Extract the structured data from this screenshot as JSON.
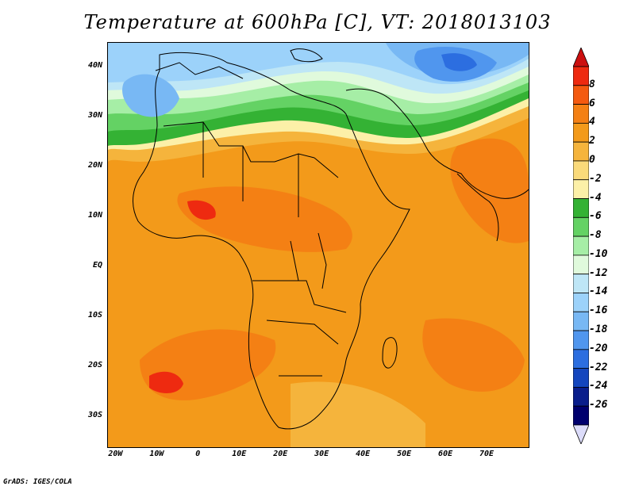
{
  "title": "Temperature at 600hPa [C], VT: 2018013103",
  "credit": "GrADS: IGES/COLA",
  "map": {
    "extent": {
      "lon": [
        -22,
        80
      ],
      "lat": [
        -36,
        45
      ]
    },
    "lat_ticks": [
      {
        "value": 40,
        "label": "40N"
      },
      {
        "value": 30,
        "label": "30N"
      },
      {
        "value": 20,
        "label": "20N"
      },
      {
        "value": 10,
        "label": "10N"
      },
      {
        "value": 0,
        "label": "EQ"
      },
      {
        "value": -10,
        "label": "10S"
      },
      {
        "value": -20,
        "label": "20S"
      },
      {
        "value": -30,
        "label": "30S"
      }
    ],
    "lon_ticks": [
      {
        "value": -20,
        "label": "20W"
      },
      {
        "value": -10,
        "label": "10W"
      },
      {
        "value": 0,
        "label": "0"
      },
      {
        "value": 10,
        "label": "10E"
      },
      {
        "value": 20,
        "label": "20E"
      },
      {
        "value": 30,
        "label": "30E"
      },
      {
        "value": 40,
        "label": "40E"
      },
      {
        "value": 50,
        "label": "50E"
      },
      {
        "value": 60,
        "label": "60E"
      },
      {
        "value": 70,
        "label": "70E"
      }
    ]
  },
  "colorbar": {
    "labels": [
      "8",
      "6",
      "4",
      "2",
      "0",
      "-2",
      "-4",
      "-6",
      "-8",
      "-10",
      "-12",
      "-14",
      "-16",
      "-18",
      "-20",
      "-22",
      "-24",
      "-26"
    ],
    "colors": [
      "#ee2a10",
      "#f45a10",
      "#f48014",
      "#f39a1a",
      "#f5b43c",
      "#fada7a",
      "#fcf0a8",
      "#34b234",
      "#64d264",
      "#a6eea6",
      "#e0fadc",
      "#bee6f6",
      "#9cd2fa",
      "#78b8f4",
      "#5096ee",
      "#2c6ee0",
      "#1446be",
      "#0a1e8c",
      "#00006e"
    ],
    "arrow_top_color": "#cc1010",
    "arrow_bottom_color": "#dcdcfa"
  }
}
